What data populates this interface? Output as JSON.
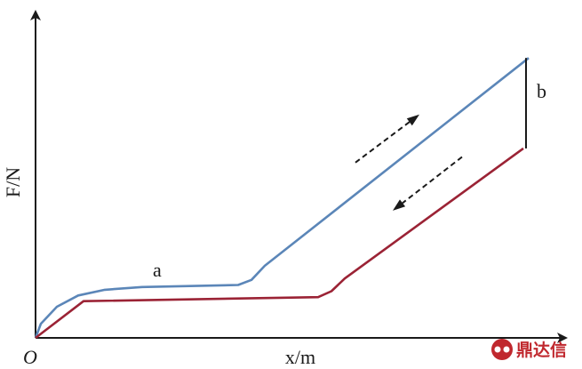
{
  "chart_data": {
    "type": "line",
    "xlabel": "x/m",
    "ylabel": "F/N",
    "origin_label": "O",
    "xlim": [
      0,
      100
    ],
    "ylim": [
      0,
      100
    ],
    "grid": false,
    "series": [
      {
        "name": "a",
        "color": "#5b86b8",
        "x": [
          0,
          1,
          4,
          8,
          13,
          20,
          38,
          40.5,
          43,
          92.5
        ],
        "y": [
          0,
          5,
          11,
          15,
          17,
          18,
          18.7,
          20.5,
          25.5,
          99
        ]
      },
      {
        "name": "",
        "color": "#9b2335",
        "x": [
          0,
          9,
          53,
          55.5,
          58,
          91.5
        ],
        "y": [
          0,
          13,
          14.4,
          16.5,
          21,
          67
        ]
      }
    ],
    "annotations": [
      {
        "label": "b",
        "type": "vertical-segment",
        "x": 92,
        "y_from": 67,
        "y_to": 99,
        "color": "#1a1a1a"
      }
    ],
    "arrows": [
      {
        "name": "loading-direction",
        "x_from": 60,
        "y_from": 62,
        "x_to": 72,
        "y_to": 79,
        "color": "#1a1a1a"
      },
      {
        "name": "unloading-direction",
        "x_from": 80,
        "y_from": 64,
        "x_to": 67,
        "y_to": 45,
        "color": "#1a1a1a"
      }
    ]
  },
  "watermark": {
    "text": "鼎达信",
    "icon": "company-logo-icon",
    "color": "#c0282e"
  }
}
